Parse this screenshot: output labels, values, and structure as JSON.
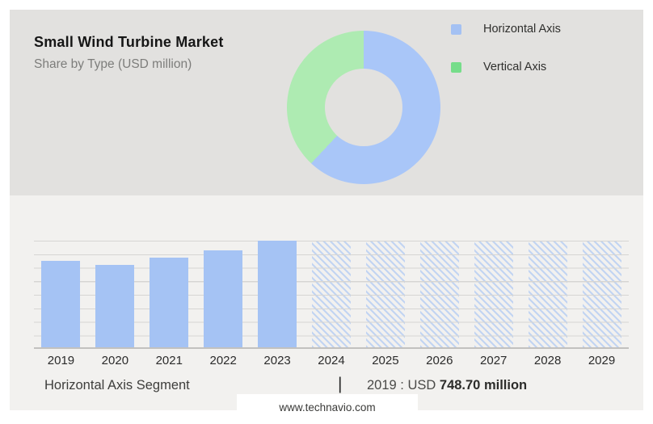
{
  "header": {
    "title": "Small Wind Turbine Market",
    "subtitle": "Share by Type (USD million)"
  },
  "legend": {
    "position": "top-right",
    "items": [
      {
        "label": "Horizontal Axis",
        "color": "#a4c1f3"
      },
      {
        "label": "Vertical Axis",
        "color": "#76dd8a"
      }
    ]
  },
  "donut": {
    "segments": [
      {
        "name": "Horizontal Axis",
        "pct": 62,
        "color": "#a9c6f8"
      },
      {
        "name": "Vertical Axis",
        "pct": 38,
        "color": "#aeebb2"
      }
    ]
  },
  "chart_data": {
    "type": "bar",
    "title": "Small Wind Turbine Market — Share by Type (USD million)",
    "categories": [
      "2019",
      "2020",
      "2021",
      "2022",
      "2023",
      "2024",
      "2025",
      "2026",
      "2027",
      "2028",
      "2029"
    ],
    "series": [
      {
        "name": "Horizontal Axis",
        "values_usd_million": [
          748.7,
          708,
          770,
          838,
          921,
          null,
          null,
          null,
          null,
          null,
          null
        ],
        "note": "Only the 2019 value (USD 748.70 million) is printed on the image; 2020-2023 are estimated from bar heights; 2024-2029 are hatched forecast bars with no values shown"
      }
    ],
    "bar_height_pct": [
      81,
      77,
      84,
      91,
      100,
      100,
      100,
      100,
      100,
      100,
      100
    ],
    "forecast_start_index": 5,
    "xlabel": "",
    "ylabel": "",
    "y_axis_labels_visible": false,
    "gridlines": 9,
    "grid": true,
    "annotation": "2019 : USD 748.70 million"
  },
  "footer": {
    "segment_label": "Horizontal Axis Segment",
    "separator": "|",
    "value_prefix": "2019 : USD ",
    "value_bold": "748.70 million",
    "watermark": "www.technavio.com"
  },
  "colors": {
    "bar_fill": "#a5c3f4",
    "hatch_stroke": "rgba(165,195,244,0.62)",
    "grid_line": "#d6d5d3",
    "axis_line": "#c2c1bf",
    "top_section_bg": "#e2e1df",
    "bottom_section_bg": "#f2f1ef",
    "page_bg": "#ffffff"
  }
}
